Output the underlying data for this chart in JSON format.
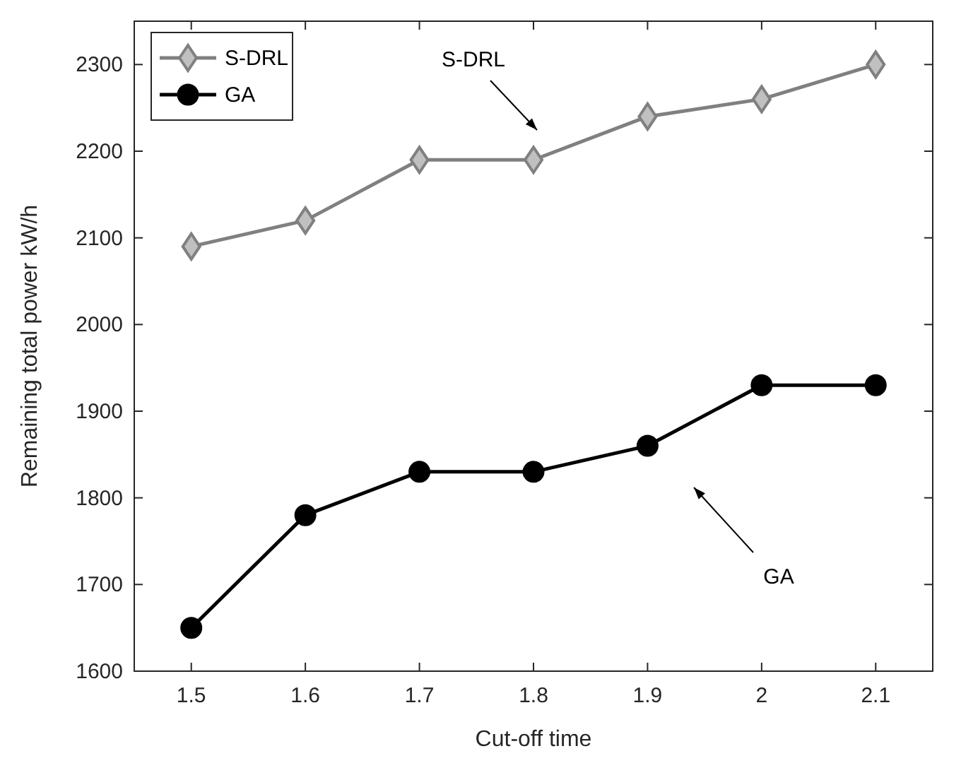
{
  "chart_data": {
    "type": "line",
    "xlabel": "Cut-off time",
    "ylabel": "Remaining total power kW/h",
    "x": [
      1.5,
      1.6,
      1.7,
      1.8,
      1.9,
      2,
      2.1
    ],
    "series": [
      {
        "name": "S-DRL",
        "color": "#808080",
        "marker": "diamond",
        "values": [
          2090,
          2120,
          2190,
          2190,
          2240,
          2260,
          2300
        ]
      },
      {
        "name": "GA",
        "color": "#000000",
        "marker": "circle",
        "values": [
          1650,
          1780,
          1830,
          1830,
          1860,
          1930,
          1930
        ]
      }
    ],
    "xlim": [
      1.45,
      2.15
    ],
    "xticks": [
      1.5,
      1.6,
      1.7,
      1.8,
      1.9,
      2,
      2.1
    ],
    "ylim": [
      1600,
      2350
    ],
    "yticks": [
      1600,
      1700,
      1800,
      1900,
      2000,
      2100,
      2200,
      2300
    ],
    "grid": false,
    "legend": "top left",
    "line_style": "solid",
    "annotations": [
      "S-DRL",
      "GA"
    ]
  }
}
